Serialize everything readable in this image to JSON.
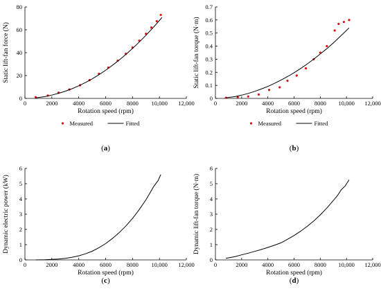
{
  "chart_data": [
    {
      "type": "line",
      "panel_label": "(a)",
      "xlabel": "Rotation speed (rpm)",
      "ylabel": "Static lift-fan force (N)",
      "xlim": [
        0,
        12000
      ],
      "ylim": [
        0,
        80
      ],
      "xticks": [
        0,
        2000,
        4000,
        6000,
        8000,
        10000,
        12000
      ],
      "xtick_labels": [
        "0",
        "2000",
        "4000",
        "6000",
        "8000",
        "10,000",
        "12,000"
      ],
      "yticks": [
        0,
        20,
        40,
        60,
        80
      ],
      "ytick_labels": [
        "0",
        "20",
        "40",
        "60",
        "80"
      ],
      "legend": {
        "placement": "bottom",
        "entries": [
          "Measured",
          "Fitted"
        ]
      },
      "series": [
        {
          "name": "Measured",
          "style": "markers",
          "x": [
            800,
            1700,
            2500,
            3300,
            4100,
            4800,
            5500,
            6200,
            6900,
            7500,
            8000,
            8500,
            9000,
            9400,
            9800,
            10100
          ],
          "y": [
            1.0,
            2.5,
            5.0,
            7.8,
            11.5,
            16.0,
            21.5,
            27.0,
            33.0,
            39.0,
            44.5,
            50.5,
            56.5,
            62.0,
            67.5,
            73.0
          ]
        },
        {
          "name": "Fitted",
          "style": "line",
          "x": [
            800,
            1500,
            2000,
            2500,
            3000,
            3500,
            4000,
            4500,
            5000,
            5500,
            6000,
            6500,
            7000,
            7500,
            8000,
            8500,
            9000,
            9500,
            10000,
            10200
          ],
          "y": [
            0.5,
            1.6,
            2.9,
            4.5,
            6.3,
            8.5,
            11.0,
            13.9,
            17.1,
            20.7,
            24.6,
            28.9,
            33.5,
            38.4,
            43.7,
            49.3,
            55.3,
            61.6,
            68.2,
            71.0
          ]
        }
      ]
    },
    {
      "type": "line",
      "panel_label": "(b)",
      "xlabel": "Rotation speed (rpm)",
      "ylabel": "Static lift-fan torque (N·m)",
      "xlim": [
        0,
        12000
      ],
      "ylim": [
        0,
        0.7
      ],
      "xticks": [
        0,
        2000,
        4000,
        6000,
        8000,
        10000,
        12000
      ],
      "xtick_labels": [
        "0",
        "2000",
        "4000",
        "6000",
        "8000",
        "10,000",
        "12,000"
      ],
      "yticks": [
        0,
        0.1,
        0.2,
        0.3,
        0.4,
        0.5,
        0.6,
        0.7
      ],
      "ytick_labels": [
        "0",
        "0.1",
        "0.2",
        "0.3",
        "0.4",
        "0.5",
        "0.6",
        "0.7"
      ],
      "legend": {
        "placement": "bottom",
        "entries": [
          "Measured",
          "Fitted"
        ]
      },
      "series": [
        {
          "name": "Measured",
          "style": "markers",
          "x": [
            800,
            1700,
            2500,
            3300,
            4100,
            4900,
            5500,
            6200,
            6900,
            7500,
            8000,
            8500,
            9100,
            9400,
            9800,
            10200
          ],
          "y": [
            0.005,
            0.01,
            0.015,
            0.03,
            0.065,
            0.085,
            0.135,
            0.175,
            0.23,
            0.3,
            0.35,
            0.4,
            0.52,
            0.57,
            0.585,
            0.6
          ]
        },
        {
          "name": "Fitted",
          "style": "line",
          "x": [
            800,
            1500,
            2000,
            2500,
            3000,
            3500,
            4000,
            4500,
            5000,
            5500,
            6000,
            6500,
            7000,
            7500,
            8000,
            8500,
            9000,
            9500,
            10000,
            10200
          ],
          "y": [
            0.005,
            0.014,
            0.025,
            0.038,
            0.054,
            0.072,
            0.092,
            0.115,
            0.14,
            0.167,
            0.197,
            0.229,
            0.263,
            0.3,
            0.34,
            0.381,
            0.425,
            0.472,
            0.52,
            0.54
          ]
        }
      ]
    },
    {
      "type": "line",
      "panel_label": "(c)",
      "xlabel": "Rotation speed (rpm)",
      "ylabel": "Dynamic electric power (kW)",
      "xlim": [
        0,
        12000
      ],
      "ylim": [
        0,
        6
      ],
      "xticks": [
        0,
        2000,
        4000,
        6000,
        8000,
        10000,
        12000
      ],
      "xtick_labels": [
        "0",
        "2000",
        "4000",
        "6000",
        "8000",
        "10,000",
        "12,000"
      ],
      "yticks": [
        0,
        1,
        2,
        3,
        4,
        5,
        6
      ],
      "ytick_labels": [
        "0",
        "1",
        "2",
        "3",
        "4",
        "5",
        "6"
      ],
      "series": [
        {
          "name": "",
          "style": "line",
          "x": [
            800,
            1500,
            2000,
            2500,
            3000,
            3500,
            4000,
            4500,
            5000,
            5500,
            6000,
            6500,
            7000,
            7500,
            8000,
            8500,
            9000,
            9300,
            9600,
            9900,
            10100
          ],
          "y": [
            0.0,
            0.01,
            0.03,
            0.06,
            0.1,
            0.17,
            0.27,
            0.4,
            0.57,
            0.8,
            1.07,
            1.4,
            1.78,
            2.22,
            2.72,
            3.3,
            3.95,
            4.4,
            4.85,
            5.2,
            5.6
          ]
        }
      ]
    },
    {
      "type": "line",
      "panel_label": "(d)",
      "xlabel": "Rotation speed (rpm)",
      "ylabel": "Dynamic lift-fan torque (N·m)",
      "xlim": [
        0,
        12000
      ],
      "ylim": [
        0,
        6
      ],
      "xticks": [
        0,
        2000,
        4000,
        6000,
        8000,
        10000,
        12000
      ],
      "xtick_labels": [
        "0",
        "2000",
        "4000",
        "6000",
        "8000",
        "10,000",
        "12,000"
      ],
      "yticks": [
        0,
        1,
        2,
        3,
        4,
        5,
        6
      ],
      "ytick_labels": [
        "0",
        "1",
        "2",
        "3",
        "4",
        "5",
        "6"
      ],
      "series": [
        {
          "name": "",
          "style": "line",
          "x": [
            800,
            1500,
            2000,
            2500,
            3000,
            3500,
            4000,
            4500,
            5000,
            5500,
            6000,
            6500,
            7000,
            7500,
            8000,
            8500,
            9000,
            9300,
            9600,
            9900,
            10200
          ],
          "y": [
            0.1,
            0.22,
            0.33,
            0.44,
            0.56,
            0.68,
            0.82,
            0.96,
            1.12,
            1.35,
            1.6,
            1.88,
            2.2,
            2.55,
            2.95,
            3.4,
            3.9,
            4.2,
            4.6,
            4.85,
            5.25
          ]
        }
      ]
    }
  ]
}
